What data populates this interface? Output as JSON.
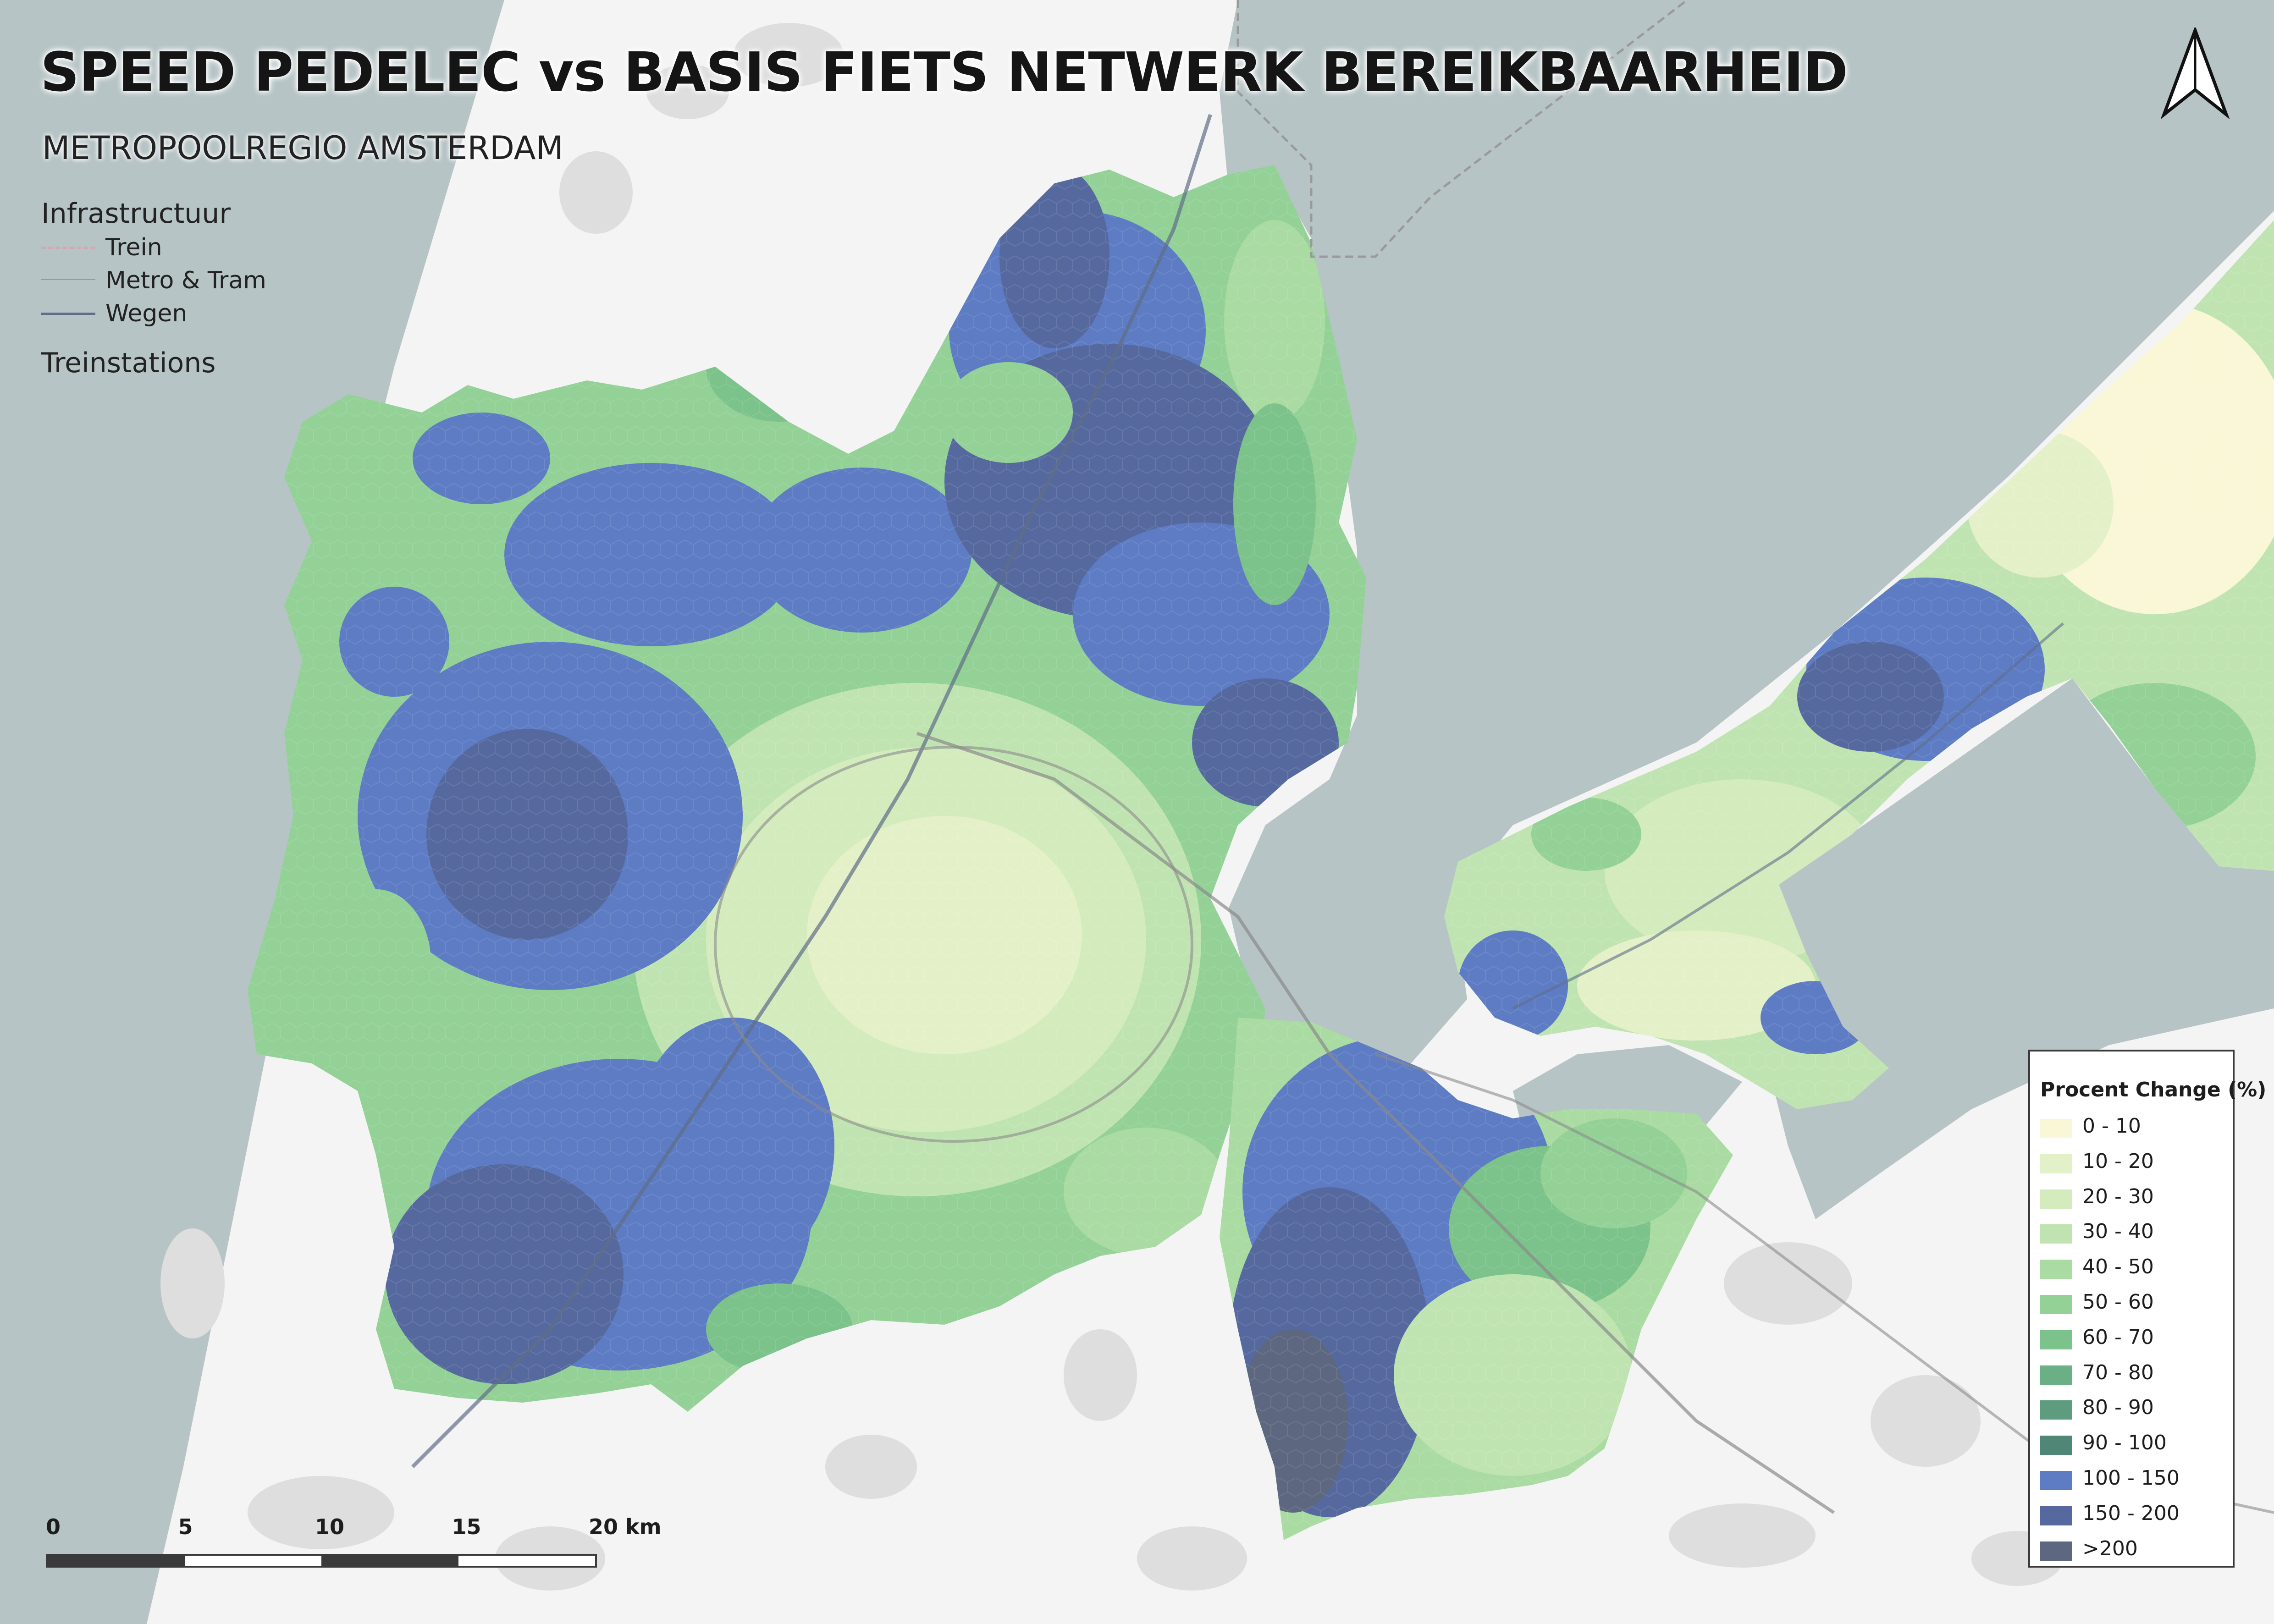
{
  "map": {
    "title": "SPEED PEDELEC vs BASIS FIETS NETWERK BEREIKBAARHEID",
    "subtitle": "METROPOOLREGIO AMSTERDAM",
    "colors": {
      "water": "#b7c4c6",
      "land": "#f4f4f4",
      "built_area": "#dedede",
      "road": "#5f6e88",
      "train": "#d8a6ad",
      "region_border": "#8a8a8a"
    }
  },
  "infrastructure": {
    "heading": "Infrastructuur",
    "items": [
      {
        "label": "Trein",
        "icon": "dashed-line-icon"
      },
      {
        "label": "Metro & Tram",
        "icon": "double-line-icon"
      },
      {
        "label": "Wegen",
        "icon": "solid-line-icon"
      }
    ],
    "stations_heading": "Treinstations"
  },
  "north_arrow": {
    "icon": "north-arrow-icon"
  },
  "legend": {
    "title": "Procent Change (%)",
    "classes": [
      {
        "label": "0 - 10",
        "color": "#f9f7d6"
      },
      {
        "label": "10 - 20",
        "color": "#e4f1c8"
      },
      {
        "label": "20 - 30",
        "color": "#d3ebbd"
      },
      {
        "label": "30 - 40",
        "color": "#c0e4b1"
      },
      {
        "label": "40 - 50",
        "color": "#a9dba2"
      },
      {
        "label": "50 - 60",
        "color": "#93d196"
      },
      {
        "label": "60 - 70",
        "color": "#7cc28b"
      },
      {
        "label": "70 - 80",
        "color": "#6aaf85"
      },
      {
        "label": "80 - 90",
        "color": "#5d9c7e"
      },
      {
        "label": "90 - 100",
        "color": "#508676"
      },
      {
        "label": "100 - 150",
        "color": "#5d7cc4"
      },
      {
        "label": "150 - 200",
        "color": "#56699f"
      },
      {
        "label": ">200",
        "color": "#5d6780"
      }
    ]
  },
  "scale_bar": {
    "labels": [
      "0",
      "5",
      "10",
      "15",
      "20 km"
    ],
    "colors": [
      "#3a3a3a",
      "#ffffff",
      "#3a3a3a",
      "#ffffff"
    ]
  }
}
